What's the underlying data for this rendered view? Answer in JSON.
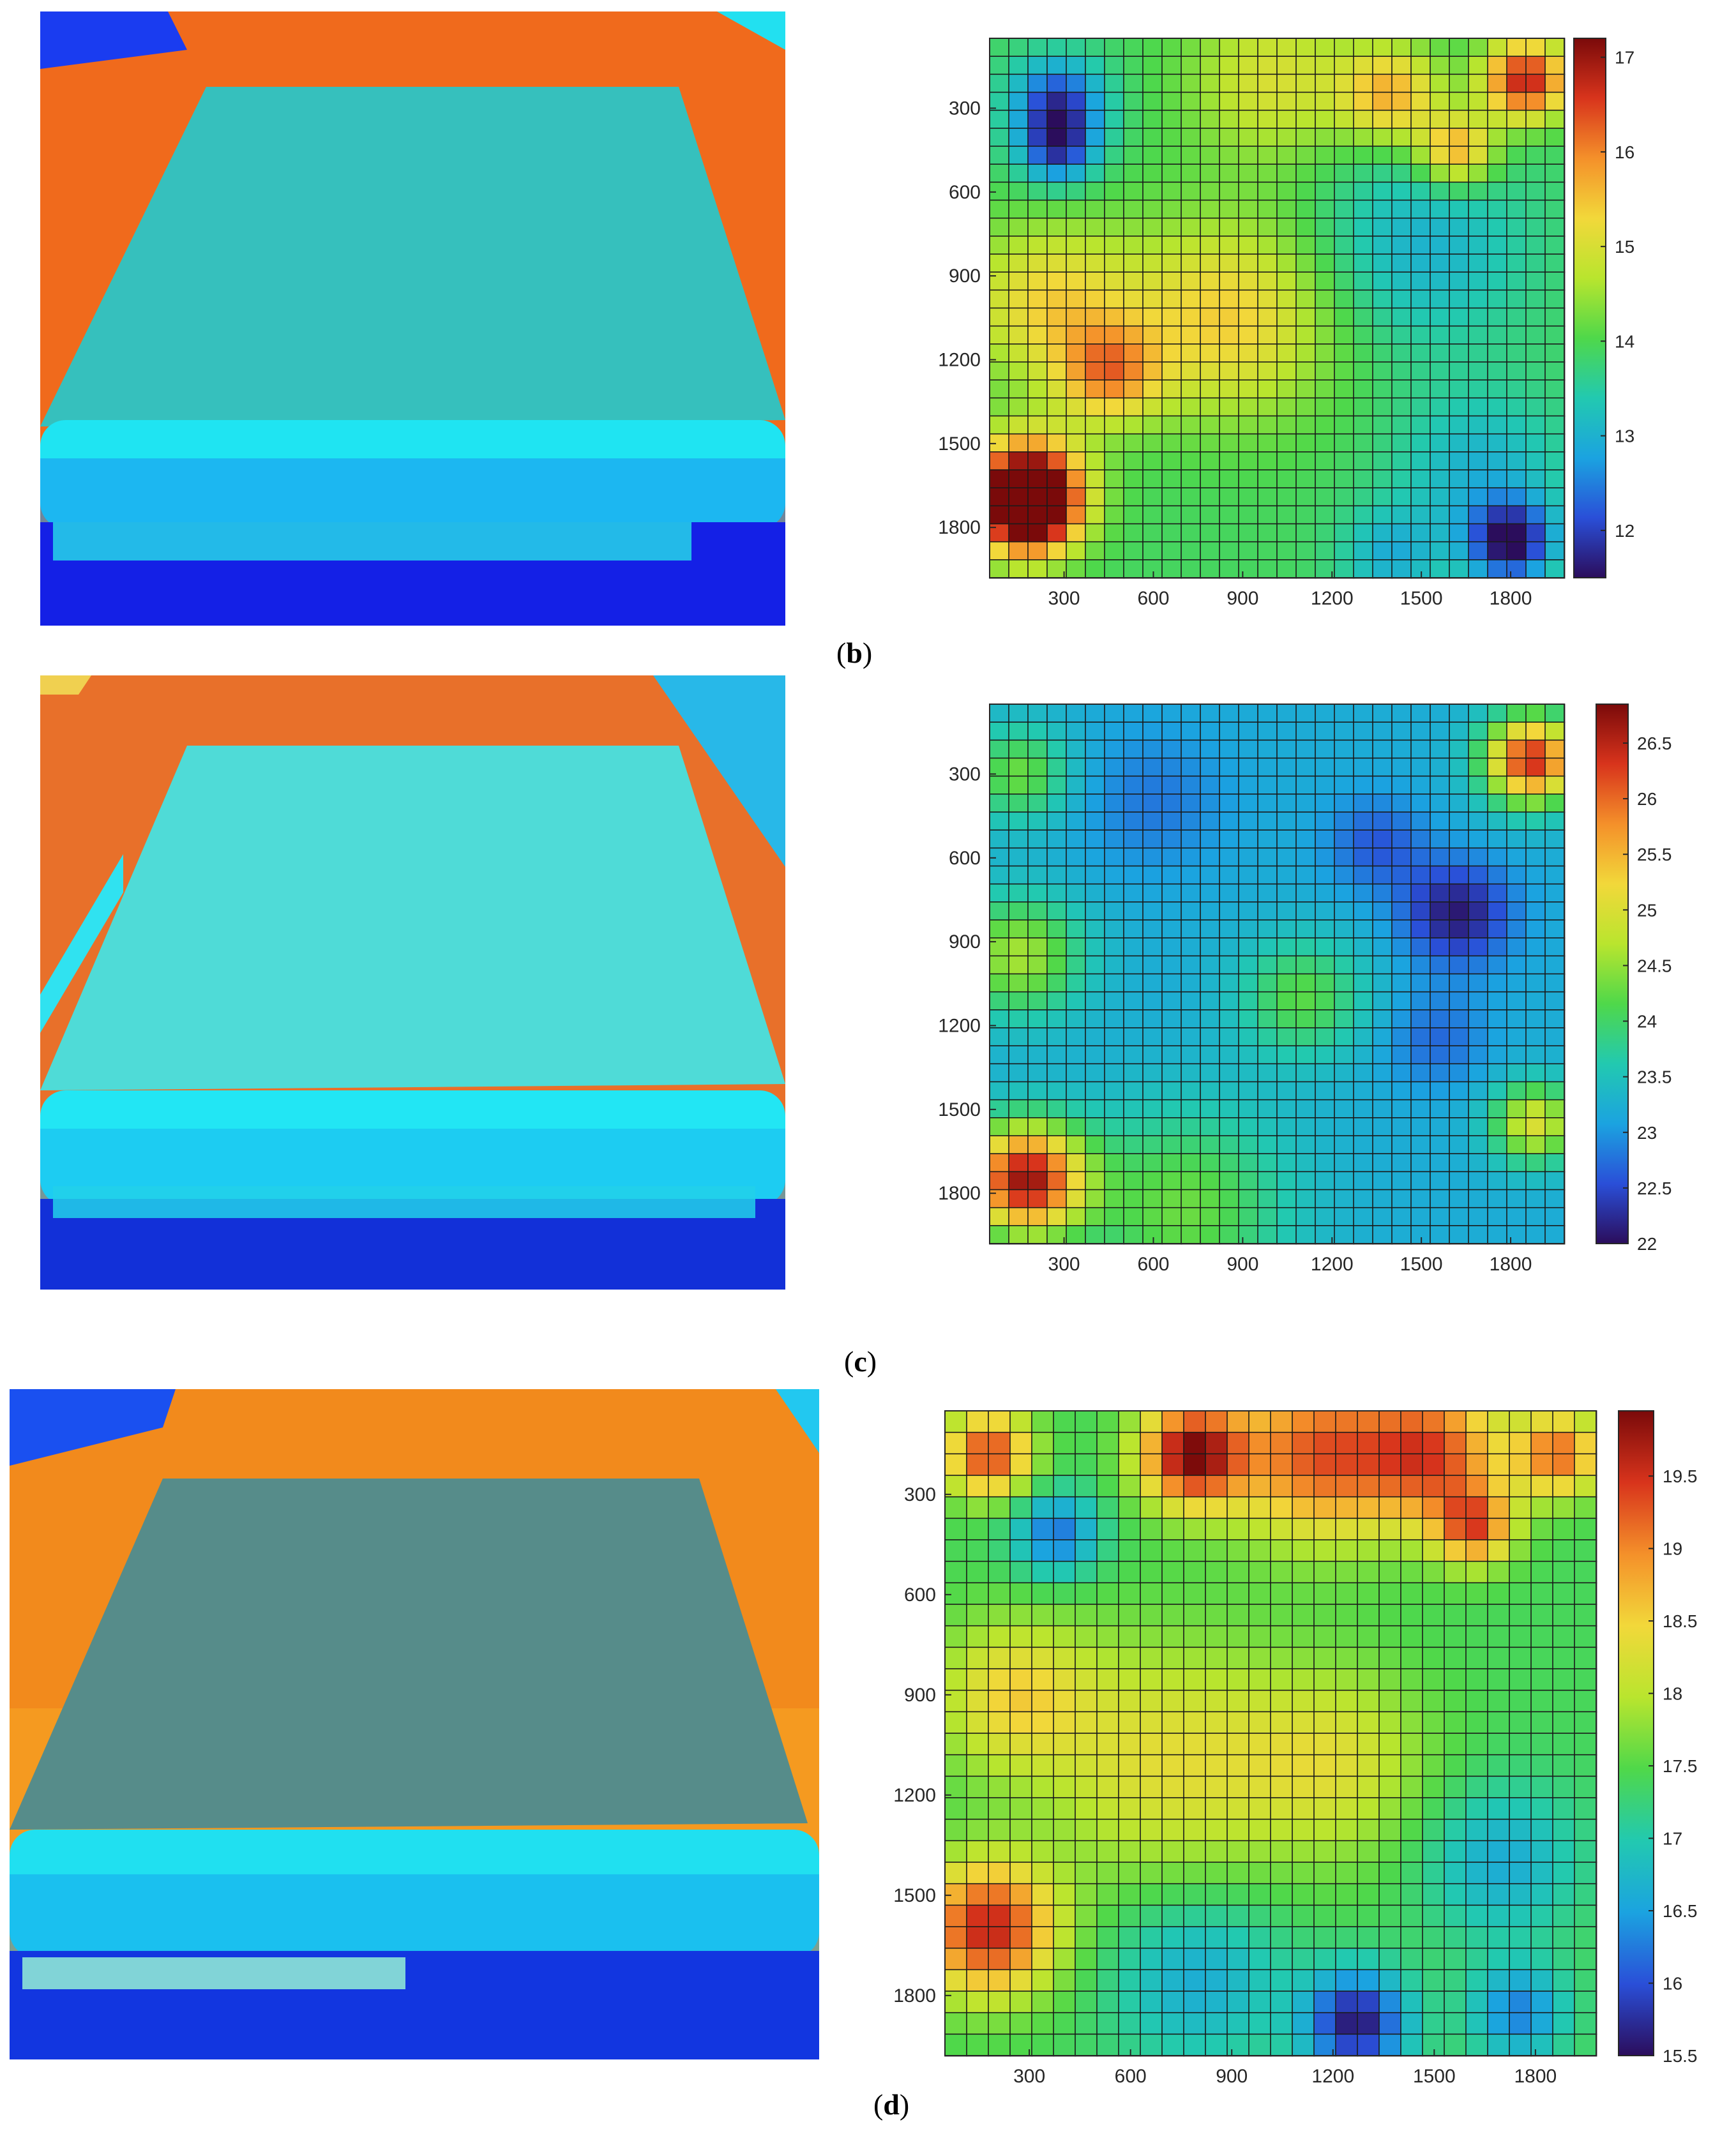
{
  "colorscale": [
    "#2b0d5c",
    "#2a4fd8",
    "#1ba3e0",
    "#22c9b0",
    "#4fd84a",
    "#b9e52e",
    "#f2d83a",
    "#f4902a",
    "#d8341c",
    "#7a0a0a"
  ],
  "captions": [
    {
      "open": "(",
      "letter": "b",
      "close": ")"
    },
    {
      "open": "(",
      "letter": "c",
      "close": ")"
    },
    {
      "open": "(",
      "letter": "d",
      "close": ")"
    }
  ],
  "chart_data": [
    {
      "type": "heatmap",
      "panel": "b",
      "x_ticks": [
        300,
        600,
        900,
        1200,
        1500,
        1800
      ],
      "y_ticks": [
        300,
        600,
        900,
        1200,
        1500,
        1800
      ],
      "xlim": [
        50,
        1980
      ],
      "ylim": [
        50,
        1980
      ],
      "colorbar_ticks": [
        12,
        13,
        14,
        15,
        16,
        17
      ],
      "clim": [
        11.5,
        17.2
      ],
      "base_value": 13.9,
      "hotspots": [
        {
          "x": 180,
          "y": 1650,
          "value": 17.0,
          "spread": 130
        },
        {
          "x": 180,
          "y": 1750,
          "value": 16.8,
          "spread": 110
        },
        {
          "x": 1850,
          "y": 200,
          "value": 16.8,
          "spread": 100
        },
        {
          "x": 1620,
          "y": 450,
          "value": 15.8,
          "spread": 90
        },
        {
          "x": 1400,
          "y": 250,
          "value": 15.6,
          "spread": 120
        },
        {
          "x": 850,
          "y": 1050,
          "value": 15.4,
          "spread": 250
        },
        {
          "x": 250,
          "y": 1000,
          "value": 15.3,
          "spread": 200
        },
        {
          "x": 450,
          "y": 1250,
          "value": 15.6,
          "spread": 120
        },
        {
          "x": 1000,
          "y": 200,
          "value": 15.0,
          "spread": 200
        },
        {
          "x": 280,
          "y": 280,
          "value": 12.0,
          "spread": 110
        },
        {
          "x": 280,
          "y": 450,
          "value": 12.2,
          "spread": 90
        },
        {
          "x": 1800,
          "y": 1850,
          "value": 11.6,
          "spread": 100
        },
        {
          "x": 1500,
          "y": 800,
          "value": 13.0,
          "spread": 250
        },
        {
          "x": 1700,
          "y": 1600,
          "value": 13.0,
          "spread": 200
        },
        {
          "x": 1400,
          "y": 1900,
          "value": 13.0,
          "spread": 120
        }
      ]
    },
    {
      "type": "heatmap",
      "panel": "c",
      "x_ticks": [
        300,
        600,
        900,
        1200,
        1500,
        1800
      ],
      "y_ticks": [
        300,
        600,
        900,
        1200,
        1500,
        1800
      ],
      "xlim": [
        50,
        1980
      ],
      "ylim": [
        50,
        1980
      ],
      "colorbar_ticks": [
        22,
        22.5,
        23,
        23.5,
        24,
        24.5,
        25,
        25.5,
        26,
        26.5
      ],
      "clim": [
        22,
        26.85
      ],
      "base_value": 23.2,
      "hotspots": [
        {
          "x": 170,
          "y": 1750,
          "value": 26.6,
          "spread": 140
        },
        {
          "x": 1870,
          "y": 250,
          "value": 26.4,
          "spread": 110
        },
        {
          "x": 150,
          "y": 950,
          "value": 24.6,
          "spread": 150
        },
        {
          "x": 1880,
          "y": 1550,
          "value": 25.0,
          "spread": 100
        },
        {
          "x": 150,
          "y": 300,
          "value": 24.3,
          "spread": 120
        },
        {
          "x": 700,
          "y": 1850,
          "value": 24.3,
          "spread": 250
        },
        {
          "x": 1100,
          "y": 1100,
          "value": 24.2,
          "spread": 150
        },
        {
          "x": 1620,
          "y": 800,
          "value": 22.1,
          "spread": 130
        },
        {
          "x": 1550,
          "y": 1250,
          "value": 22.7,
          "spread": 120
        },
        {
          "x": 1350,
          "y": 550,
          "value": 22.6,
          "spread": 120
        },
        {
          "x": 600,
          "y": 400,
          "value": 22.8,
          "spread": 180
        }
      ]
    },
    {
      "type": "heatmap",
      "panel": "d",
      "x_ticks": [
        300,
        600,
        900,
        1200,
        1500,
        1800
      ],
      "y_ticks": [
        300,
        600,
        900,
        1200,
        1500,
        1800
      ],
      "xlim": [
        50,
        1980
      ],
      "ylim": [
        50,
        1980
      ],
      "colorbar_ticks": [
        15.5,
        16,
        16.5,
        17,
        17.5,
        18,
        18.5,
        19,
        19.5
      ],
      "clim": [
        15.5,
        19.95
      ],
      "base_value": 17.4,
      "hotspots": [
        {
          "x": 180,
          "y": 1600,
          "value": 19.6,
          "spread": 140
        },
        {
          "x": 180,
          "y": 180,
          "value": 19.4,
          "spread": 90
        },
        {
          "x": 780,
          "y": 180,
          "value": 19.8,
          "spread": 110
        },
        {
          "x": 1150,
          "y": 180,
          "value": 19.2,
          "spread": 180
        },
        {
          "x": 1500,
          "y": 180,
          "value": 19.2,
          "spread": 150
        },
        {
          "x": 1870,
          "y": 180,
          "value": 19.1,
          "spread": 90
        },
        {
          "x": 1620,
          "y": 400,
          "value": 19.0,
          "spread": 80
        },
        {
          "x": 700,
          "y": 1100,
          "value": 18.3,
          "spread": 260
        },
        {
          "x": 1200,
          "y": 1100,
          "value": 18.2,
          "spread": 200
        },
        {
          "x": 250,
          "y": 900,
          "value": 18.4,
          "spread": 160
        },
        {
          "x": 1270,
          "y": 1880,
          "value": 15.6,
          "spread": 110
        },
        {
          "x": 380,
          "y": 420,
          "value": 16.2,
          "spread": 90
        },
        {
          "x": 1750,
          "y": 1850,
          "value": 16.3,
          "spread": 100
        },
        {
          "x": 1700,
          "y": 1400,
          "value": 16.6,
          "spread": 160
        },
        {
          "x": 800,
          "y": 1750,
          "value": 16.6,
          "spread": 180
        }
      ]
    }
  ]
}
